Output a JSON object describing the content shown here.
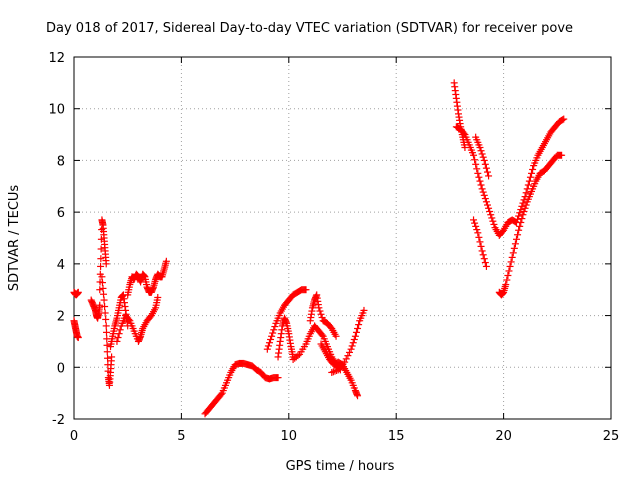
{
  "chart_data": {
    "type": "scatter",
    "title": "Day 018 of 2017, Sidereal Day-to-day VTEC variation (SDTVAR) for receiver pove",
    "xlabel": "GPS time / hours",
    "ylabel": "SDTVAR / TECUs",
    "xlim": [
      0,
      25
    ],
    "ylim": [
      -2,
      12
    ],
    "xticks": [
      0,
      5,
      10,
      15,
      20,
      25
    ],
    "yticks": [
      -2,
      0,
      2,
      4,
      6,
      8,
      10,
      12
    ],
    "grid": true,
    "marker": "+",
    "color": "#ff0000",
    "segments": [
      {
        "x": [
          0.0,
          0.05,
          0.1,
          0.15,
          0.2
        ],
        "y": [
          2.9,
          2.85,
          2.8,
          2.85,
          2.9
        ]
      },
      {
        "x": [
          0.0,
          0.05,
          0.1,
          0.15,
          0.2
        ],
        "y": [
          1.8,
          1.6,
          1.4,
          1.2,
          1.15
        ]
      },
      {
        "x": [
          0.8,
          0.9,
          1.0,
          1.05,
          1.1,
          1.15,
          1.2
        ],
        "y": [
          2.6,
          2.4,
          2.2,
          2.0,
          1.9,
          2.1,
          2.4
        ]
      },
      {
        "x": [
          1.2,
          1.25,
          1.3,
          1.35,
          1.4,
          1.45,
          1.5
        ],
        "y": [
          3.0,
          4.2,
          5.7,
          5.5,
          5.0,
          4.5,
          4.0
        ]
      },
      {
        "x": [
          1.3,
          1.4,
          1.5,
          1.55,
          1.6,
          1.65,
          1.7,
          1.75
        ],
        "y": [
          3.5,
          2.6,
          1.6,
          0.6,
          -0.4,
          -0.7,
          -0.2,
          0.4
        ]
      },
      {
        "x": [
          1.7,
          1.8,
          1.9,
          2.0,
          2.1,
          2.2,
          2.3,
          2.4,
          2.5
        ],
        "y": [
          0.8,
          1.2,
          1.6,
          1.9,
          2.3,
          2.7,
          2.8,
          2.2,
          1.6
        ]
      },
      {
        "x": [
          2.5,
          2.6,
          2.7,
          2.8,
          2.9,
          3.0,
          3.1,
          3.2,
          3.3,
          3.4,
          3.5,
          3.6,
          3.7,
          3.8,
          3.9,
          4.0,
          4.1,
          4.2,
          4.3
        ],
        "y": [
          2.8,
          3.2,
          3.5,
          3.4,
          3.6,
          3.5,
          3.3,
          3.6,
          3.5,
          3.1,
          2.9,
          2.9,
          3.1,
          3.4,
          3.6,
          3.5,
          3.5,
          3.8,
          4.1
        ]
      },
      {
        "x": [
          2.0,
          2.2,
          2.4,
          2.6,
          2.8,
          3.0,
          3.1,
          3.2,
          3.4,
          3.6,
          3.8,
          3.9
        ],
        "y": [
          1.0,
          1.6,
          2.0,
          1.8,
          1.4,
          1.0,
          1.2,
          1.5,
          1.8,
          2.0,
          2.3,
          2.7
        ]
      },
      {
        "x": [
          6.1,
          6.3,
          6.5,
          6.7,
          6.9,
          7.1,
          7.3,
          7.5,
          7.7,
          7.9,
          8.1,
          8.3,
          8.5,
          8.7,
          8.9,
          9.1,
          9.3,
          9.5
        ],
        "y": [
          -1.8,
          -1.6,
          -1.4,
          -1.2,
          -1.0,
          -0.6,
          -0.2,
          0.1,
          0.15,
          0.15,
          0.1,
          0.05,
          -0.1,
          -0.2,
          -0.4,
          -0.45,
          -0.4,
          -0.4
        ]
      },
      {
        "x": [
          9.0,
          9.2,
          9.4,
          9.6,
          9.8,
          10.0,
          10.2,
          10.4,
          10.6,
          10.8
        ],
        "y": [
          0.7,
          1.2,
          1.7,
          2.1,
          2.4,
          2.6,
          2.8,
          2.9,
          3.0,
          3.0
        ]
      },
      {
        "x": [
          9.5,
          9.6,
          9.7,
          9.8,
          9.9,
          10.0,
          10.1,
          10.2
        ],
        "y": [
          0.4,
          1.0,
          1.6,
          1.9,
          1.7,
          1.3,
          0.8,
          0.4
        ]
      },
      {
        "x": [
          10.2,
          10.5,
          10.8,
          11.0,
          11.2,
          11.4,
          11.6,
          11.8,
          12.0,
          12.2,
          12.4
        ],
        "y": [
          0.3,
          0.5,
          0.9,
          1.3,
          1.6,
          1.4,
          1.2,
          0.8,
          0.4,
          0.1,
          -0.1
        ]
      },
      {
        "x": [
          11.0,
          11.1,
          11.2,
          11.3,
          11.4,
          11.6,
          11.8,
          12.0,
          12.2
        ],
        "y": [
          1.8,
          2.3,
          2.6,
          2.8,
          2.3,
          1.8,
          1.7,
          1.5,
          1.2
        ]
      },
      {
        "x": [
          11.5,
          11.7,
          11.9,
          12.1,
          12.3,
          12.5,
          12.7,
          12.9,
          13.1,
          13.2
        ],
        "y": [
          0.9,
          0.6,
          0.3,
          0.1,
          0.2,
          0.1,
          -0.2,
          -0.5,
          -0.9,
          -1.1
        ]
      },
      {
        "x": [
          12.0,
          12.3,
          12.6,
          12.9,
          13.1,
          13.3,
          13.5
        ],
        "y": [
          -0.2,
          -0.1,
          0.2,
          0.7,
          1.2,
          1.8,
          2.2
        ]
      },
      {
        "x": [
          17.7,
          17.8,
          17.9,
          18.0,
          18.1,
          18.2
        ],
        "y": [
          11.0,
          10.4,
          9.8,
          9.3,
          8.9,
          8.5
        ]
      },
      {
        "x": [
          17.8,
          18.0,
          18.2,
          18.4,
          18.6,
          18.8,
          19.0,
          19.2,
          19.4,
          19.6,
          19.8,
          20.0,
          20.2,
          20.4,
          20.6,
          20.8,
          21.0,
          21.2,
          21.4,
          21.6,
          21.8,
          22.0,
          22.2,
          22.4,
          22.6,
          22.8
        ],
        "y": [
          9.3,
          9.2,
          9.0,
          8.6,
          8.2,
          7.5,
          6.9,
          6.4,
          5.9,
          5.4,
          5.1,
          5.3,
          5.6,
          5.7,
          5.6,
          6.1,
          6.6,
          7.2,
          7.8,
          8.2,
          8.5,
          8.8,
          9.1,
          9.3,
          9.5,
          9.6
        ]
      },
      {
        "x": [
          18.6,
          18.8,
          19.0,
          19.2
        ],
        "y": [
          5.7,
          5.2,
          4.5,
          3.9
        ]
      },
      {
        "x": [
          18.7,
          18.9,
          19.1,
          19.3
        ],
        "y": [
          8.9,
          8.5,
          8.0,
          7.4
        ]
      },
      {
        "x": [
          19.8,
          19.9,
          20.0,
          20.1,
          20.3,
          20.5,
          20.7,
          20.9,
          21.1,
          21.3,
          21.5,
          21.7,
          21.9,
          22.1,
          22.3,
          22.5,
          22.7
        ],
        "y": [
          2.9,
          2.8,
          2.9,
          3.2,
          3.9,
          4.6,
          5.3,
          5.9,
          6.4,
          6.8,
          7.2,
          7.5,
          7.6,
          7.8,
          8.0,
          8.2,
          8.2
        ]
      }
    ]
  }
}
